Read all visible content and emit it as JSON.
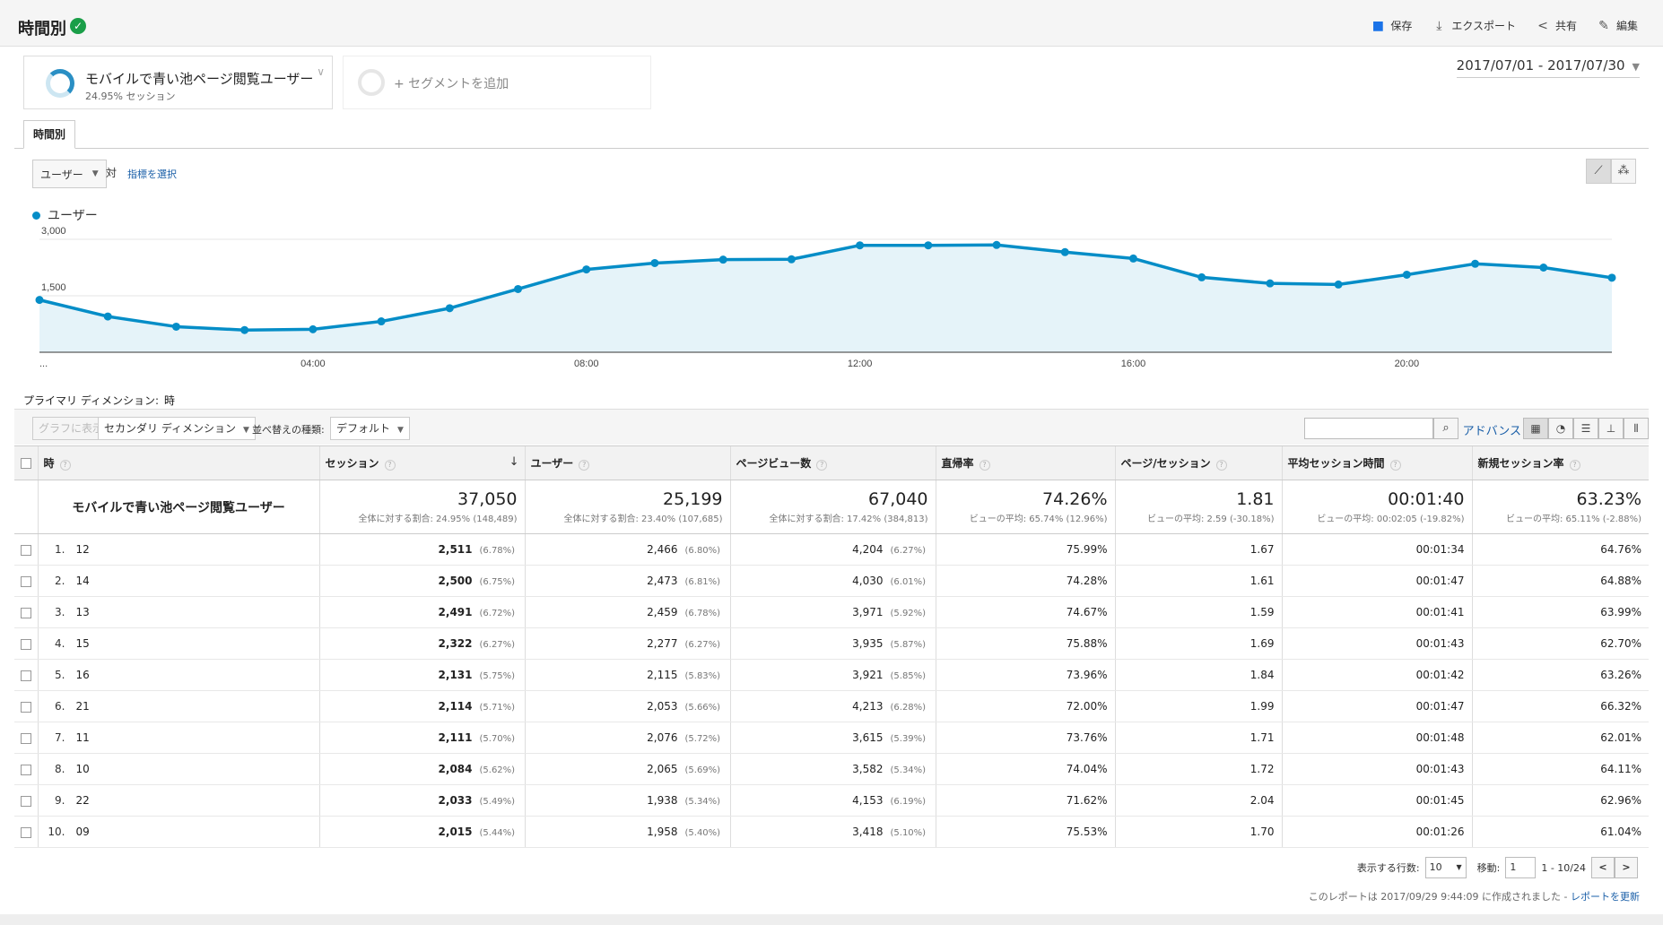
{
  "header": {
    "title": "時間別",
    "actions": [
      {
        "label": "保存",
        "icon": "save-icon"
      },
      {
        "label": "エクスポート",
        "icon": "export-icon"
      },
      {
        "label": "共有",
        "icon": "share-icon"
      },
      {
        "label": "編集",
        "icon": "edit-icon"
      }
    ]
  },
  "segment": {
    "name": "モバイルで青い池ページ閲覧ユーザー",
    "sub": "24.95% セッション",
    "add_label": "+ セグメントを追加"
  },
  "date_range": "2017/07/01 - 2017/07/30",
  "tab": "時間別",
  "chart_controls": {
    "metric": "ユーザー",
    "vs": "対",
    "pick_metric": "指標を選択"
  },
  "legend_label": "ユーザー",
  "chart_data": {
    "type": "area",
    "x": [
      "00:00",
      "01:00",
      "02:00",
      "03:00",
      "04:00",
      "05:00",
      "06:00",
      "07:00",
      "08:00",
      "09:00",
      "10:00",
      "11:00",
      "12:00",
      "13:00",
      "14:00",
      "15:00",
      "16:00",
      "17:00",
      "18:00",
      "19:00",
      "20:00",
      "21:00",
      "22:00",
      "23:00"
    ],
    "series": [
      {
        "name": "ユーザー",
        "values": [
          1390,
          950,
          680,
          590,
          610,
          820,
          1170,
          1680,
          2200,
          2370,
          2460,
          2470,
          2840,
          2840,
          2850,
          2660,
          2490,
          1990,
          1830,
          1800,
          2060,
          2350,
          2250,
          1980
        ]
      }
    ],
    "ylim": [
      0,
      3000
    ],
    "y_ticks": [
      "1,500",
      "3,000"
    ],
    "x_tick_labels": [
      "...",
      "04:00",
      "08:00",
      "12:00",
      "16:00",
      "20:00"
    ],
    "color": "#058dc7",
    "fill": "#e5f3f9"
  },
  "primary_dimension": {
    "label": "プライマリ ディメンション:",
    "value": "時"
  },
  "toolbar": {
    "graph_btn": "グラフに表示",
    "secondary_dim": "セカンダリ ディメンション",
    "sort_label": "並べ替えの種類:",
    "sort_value": "デフォルト",
    "advanced": "アドバンス"
  },
  "table": {
    "headers": [
      "時",
      "セッション",
      "ユーザー",
      "ページビュー数",
      "直帰率",
      "ページ/セッション",
      "平均セッション時間",
      "新規セッション率"
    ],
    "totals": {
      "label": "モバイルで青い池ページ閲覧ユーザー",
      "values": [
        {
          "v": "37,050",
          "sub": "全体に対する割合: 24.95% (148,489)"
        },
        {
          "v": "25,199",
          "sub": "全体に対する割合: 23.40% (107,685)"
        },
        {
          "v": "67,040",
          "sub": "全体に対する割合: 17.42% (384,813)"
        },
        {
          "v": "74.26%",
          "sub": "ビューの平均: 65.74% (12.96%)"
        },
        {
          "v": "1.81",
          "sub": "ビューの平均: 2.59 (-30.18%)"
        },
        {
          "v": "00:01:40",
          "sub": "ビューの平均: 00:02:05 (-19.82%)"
        },
        {
          "v": "63.23%",
          "sub": "ビューの平均: 65.11% (-2.88%)"
        }
      ]
    },
    "rows": [
      {
        "n": "1.",
        "hour": "12",
        "sessions": "2,511",
        "sessions_pct": "(6.78%)",
        "users": "2,466",
        "users_pct": "(6.80%)",
        "pv": "4,204",
        "pv_pct": "(6.27%)",
        "bounce": "75.99%",
        "pps": "1.67",
        "avg": "00:01:34",
        "newrate": "64.76%"
      },
      {
        "n": "2.",
        "hour": "14",
        "sessions": "2,500",
        "sessions_pct": "(6.75%)",
        "users": "2,473",
        "users_pct": "(6.81%)",
        "pv": "4,030",
        "pv_pct": "(6.01%)",
        "bounce": "74.28%",
        "pps": "1.61",
        "avg": "00:01:47",
        "newrate": "64.88%"
      },
      {
        "n": "3.",
        "hour": "13",
        "sessions": "2,491",
        "sessions_pct": "(6.72%)",
        "users": "2,459",
        "users_pct": "(6.78%)",
        "pv": "3,971",
        "pv_pct": "(5.92%)",
        "bounce": "74.67%",
        "pps": "1.59",
        "avg": "00:01:41",
        "newrate": "63.99%"
      },
      {
        "n": "4.",
        "hour": "15",
        "sessions": "2,322",
        "sessions_pct": "(6.27%)",
        "users": "2,277",
        "users_pct": "(6.27%)",
        "pv": "3,935",
        "pv_pct": "(5.87%)",
        "bounce": "75.88%",
        "pps": "1.69",
        "avg": "00:01:43",
        "newrate": "62.70%"
      },
      {
        "n": "5.",
        "hour": "16",
        "sessions": "2,131",
        "sessions_pct": "(5.75%)",
        "users": "2,115",
        "users_pct": "(5.83%)",
        "pv": "3,921",
        "pv_pct": "(5.85%)",
        "bounce": "73.96%",
        "pps": "1.84",
        "avg": "00:01:42",
        "newrate": "63.26%"
      },
      {
        "n": "6.",
        "hour": "21",
        "sessions": "2,114",
        "sessions_pct": "(5.71%)",
        "users": "2,053",
        "users_pct": "(5.66%)",
        "pv": "4,213",
        "pv_pct": "(6.28%)",
        "bounce": "72.00%",
        "pps": "1.99",
        "avg": "00:01:47",
        "newrate": "66.32%"
      },
      {
        "n": "7.",
        "hour": "11",
        "sessions": "2,111",
        "sessions_pct": "(5.70%)",
        "users": "2,076",
        "users_pct": "(5.72%)",
        "pv": "3,615",
        "pv_pct": "(5.39%)",
        "bounce": "73.76%",
        "pps": "1.71",
        "avg": "00:01:48",
        "newrate": "62.01%"
      },
      {
        "n": "8.",
        "hour": "10",
        "sessions": "2,084",
        "sessions_pct": "(5.62%)",
        "users": "2,065",
        "users_pct": "(5.69%)",
        "pv": "3,582",
        "pv_pct": "(5.34%)",
        "bounce": "74.04%",
        "pps": "1.72",
        "avg": "00:01:43",
        "newrate": "64.11%"
      },
      {
        "n": "9.",
        "hour": "22",
        "sessions": "2,033",
        "sessions_pct": "(5.49%)",
        "users": "1,938",
        "users_pct": "(5.34%)",
        "pv": "4,153",
        "pv_pct": "(6.19%)",
        "bounce": "71.62%",
        "pps": "2.04",
        "avg": "00:01:45",
        "newrate": "62.96%"
      },
      {
        "n": "10.",
        "hour": "09",
        "sessions": "2,015",
        "sessions_pct": "(5.44%)",
        "users": "1,958",
        "users_pct": "(5.40%)",
        "pv": "3,418",
        "pv_pct": "(5.10%)",
        "bounce": "75.53%",
        "pps": "1.70",
        "avg": "00:01:26",
        "newrate": "61.04%"
      }
    ]
  },
  "pager": {
    "rows_label": "表示する行数:",
    "rows_value": "10",
    "goto_label": "移動:",
    "goto_value": "1",
    "range": "1 - 10/24"
  },
  "footer": {
    "note": "このレポートは 2017/09/29 9:44:09 に作成されました -",
    "refresh": "レポートを更新"
  }
}
